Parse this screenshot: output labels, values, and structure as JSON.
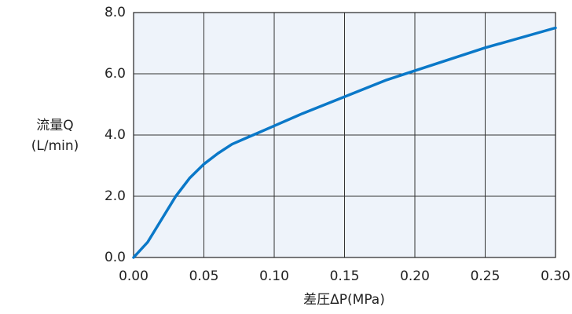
{
  "chart_data": {
    "type": "line",
    "xlabel": "差圧ΔP(MPa)",
    "ylabel": [
      "流量Q",
      "(L/min)"
    ],
    "x": [
      0,
      0.01,
      0.02,
      0.03,
      0.04,
      0.05,
      0.06,
      0.07,
      0.08,
      0.09,
      0.1,
      0.12,
      0.15,
      0.18,
      0.2,
      0.25,
      0.3
    ],
    "series": [
      {
        "color": "#0a78c8",
        "values": [
          0,
          0.5,
          1.25,
          2.0,
          2.6,
          3.05,
          3.4,
          3.7,
          3.9,
          4.1,
          4.3,
          4.7,
          5.25,
          5.8,
          6.1,
          6.85,
          7.5
        ]
      }
    ],
    "xlim": [
      0,
      0.3
    ],
    "xticks": [
      {
        "value": 0,
        "label": "0.00"
      },
      {
        "value": 0.05,
        "label": "0.05"
      },
      {
        "value": 0.1,
        "label": "0.10"
      },
      {
        "value": 0.15,
        "label": "0.15"
      },
      {
        "value": 0.2,
        "label": "0.20"
      },
      {
        "value": 0.25,
        "label": "0.25"
      },
      {
        "value": 0.3,
        "label": "0.30"
      }
    ],
    "ylim": [
      0,
      8
    ],
    "yticks": [
      {
        "value": 0,
        "label": "0.0"
      },
      {
        "value": 2,
        "label": "2.0"
      },
      {
        "value": 4,
        "label": "4.0"
      },
      {
        "value": 6,
        "label": "6.0"
      },
      {
        "value": 8,
        "label": "8.0"
      }
    ],
    "grid": true,
    "plot_background": "#eef3fa"
  }
}
